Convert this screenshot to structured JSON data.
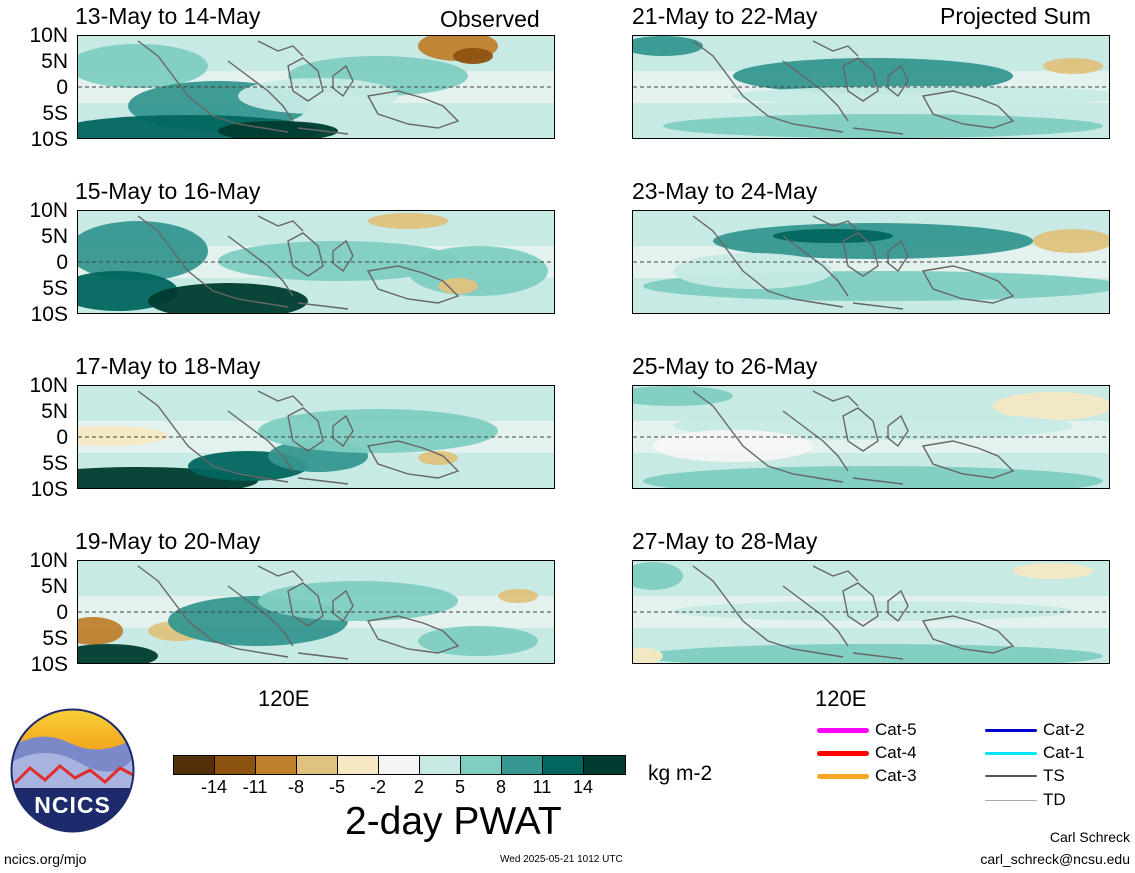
{
  "header": {
    "observed_label": "Observed",
    "projected_label": "Projected Sum"
  },
  "panels": {
    "left": [
      {
        "title": "13-May to 14-May"
      },
      {
        "title": "15-May to 16-May"
      },
      {
        "title": "17-May to 18-May"
      },
      {
        "title": "19-May to 20-May"
      }
    ],
    "right": [
      {
        "title": "21-May to 22-May"
      },
      {
        "title": "23-May to 24-May"
      },
      {
        "title": "25-May to 26-May"
      },
      {
        "title": "27-May to 28-May"
      }
    ]
  },
  "axes": {
    "lat_labels": [
      "10N",
      "5N",
      "0",
      "5S",
      "10S"
    ],
    "lon_label": "120E"
  },
  "colorbar": {
    "title": "2-day PWAT",
    "units": "kg m-2",
    "ticks": [
      "-14",
      "-11",
      "-8",
      "-5",
      "-2",
      "2",
      "5",
      "8",
      "11",
      "14"
    ],
    "colors": [
      "#54300a",
      "#8c520f",
      "#bf812d",
      "#dfc27d",
      "#f6e8c3",
      "#f5f5f5",
      "#c7eae5",
      "#80cdc1",
      "#35978f",
      "#01665e",
      "#003c30"
    ]
  },
  "storm_legend": {
    "left": [
      {
        "label": "Cat-5",
        "color": "#ff00ff"
      },
      {
        "label": "Cat-4",
        "color": "#ff0000"
      },
      {
        "label": "Cat-3",
        "color": "#f5a623"
      }
    ],
    "right": [
      {
        "label": "Cat-2",
        "color": "#0000cc"
      },
      {
        "label": "Cat-1",
        "color": "#00e5ff"
      },
      {
        "label": "TS",
        "color": "#555555"
      },
      {
        "label": "TD",
        "color": "#aaaaaa"
      }
    ]
  },
  "logo": {
    "text": "NCICS"
  },
  "footer": {
    "url": "ncics.org/mjo",
    "timestamp": "Wed 2025-05-21 1012 UTC",
    "author": "Carl Schreck",
    "email": "carl_schreck@ncsu.edu"
  }
}
